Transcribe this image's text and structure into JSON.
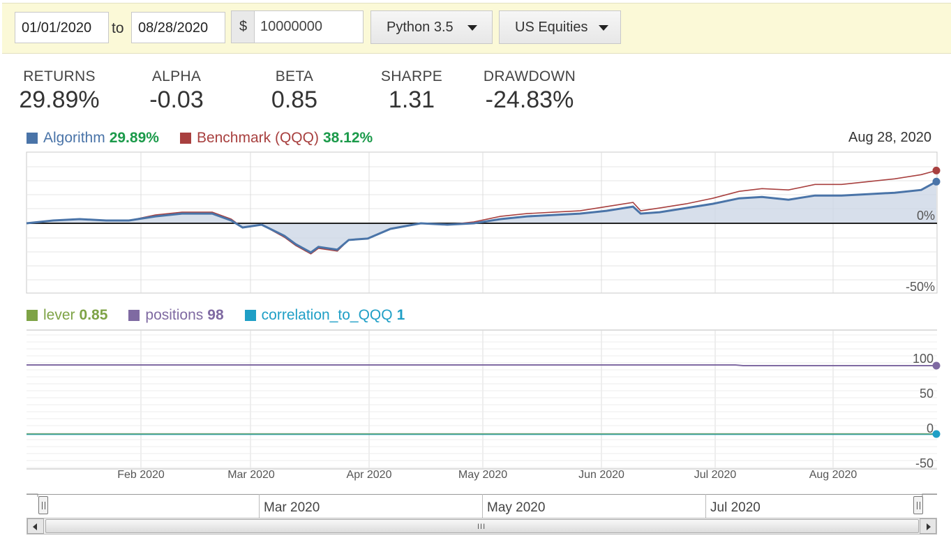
{
  "toolbar": {
    "start_date": "01/01/2020",
    "to_label": "to",
    "end_date": "08/28/2020",
    "currency_symbol": "$",
    "capital": "10000000",
    "python_version": "Python 3.5",
    "dataset": "US Equities"
  },
  "stats": [
    {
      "label": "RETURNS",
      "value": "29.89%"
    },
    {
      "label": "ALPHA",
      "value": "-0.03"
    },
    {
      "label": "BETA",
      "value": "0.85"
    },
    {
      "label": "SHARPE",
      "value": "1.31"
    },
    {
      "label": "DRAWDOWN",
      "value": "-24.83%"
    }
  ],
  "returns_legend": {
    "algorithm_label": "Algorithm",
    "algorithm_value": "29.89%",
    "benchmark_label": "Benchmark (QQQ)",
    "benchmark_value": "38.12%",
    "date": "Aug 28, 2020"
  },
  "custom_legend": {
    "lever_label": "lever",
    "lever_value": "0.85",
    "positions_label": "positions",
    "positions_value": "98",
    "correlation_label": "correlation_to_QQQ",
    "correlation_value": "1"
  },
  "navigator": {
    "labels": [
      "Mar 2020",
      "May 2020",
      "Jul 2020"
    ],
    "grip": "III"
  },
  "colors": {
    "algorithm": "#4a74a8",
    "benchmark": "#a8403f",
    "lever": "#7ea346",
    "positions": "#7f6aa2",
    "correlation": "#1f9fc6",
    "positive": "#1b9a4a",
    "toolbar_bg": "#fbf9d7"
  },
  "chart_data": [
    {
      "type": "line",
      "title": "",
      "x_tick_labels": [
        "Feb 2020",
        "Mar 2020",
        "Apr 2020",
        "May 2020",
        "Jun 2020",
        "Jul 2020",
        "Aug 2020"
      ],
      "y_tick_labels": [
        "0%",
        "-50%"
      ],
      "ylim": [
        -50,
        50
      ],
      "x_dates": [
        "2020-01-01",
        "2020-01-08",
        "2020-01-15",
        "2020-01-22",
        "2020-01-28",
        "2020-02-04",
        "2020-02-11",
        "2020-02-19",
        "2020-02-24",
        "2020-02-27",
        "2020-03-03",
        "2020-03-09",
        "2020-03-12",
        "2020-03-16",
        "2020-03-18",
        "2020-03-23",
        "2020-03-26",
        "2020-03-31",
        "2020-04-06",
        "2020-04-14",
        "2020-04-21",
        "2020-04-28",
        "2020-05-05",
        "2020-05-12",
        "2020-05-19",
        "2020-05-26",
        "2020-06-02",
        "2020-06-09",
        "2020-06-11",
        "2020-06-16",
        "2020-06-23",
        "2020-06-30",
        "2020-07-07",
        "2020-07-13",
        "2020-07-20",
        "2020-07-27",
        "2020-08-03",
        "2020-08-10",
        "2020-08-17",
        "2020-08-24",
        "2020-08-28"
      ],
      "series": [
        {
          "name": "Algorithm",
          "values": [
            0,
            2,
            3,
            2,
            2,
            5,
            7,
            7,
            2,
            -3,
            -1,
            -9,
            -15,
            -21,
            -17,
            -19,
            -12,
            -11,
            -4,
            0,
            -1,
            0,
            3,
            5,
            6,
            7,
            9,
            12,
            7,
            8,
            11,
            14,
            18,
            19,
            17,
            20,
            20,
            21,
            22,
            24,
            30
          ]
        },
        {
          "name": "Benchmark (QQQ)",
          "values": [
            0,
            2,
            3,
            2,
            2,
            6,
            8,
            8,
            3,
            -3,
            -1,
            -10,
            -16,
            -22,
            -18,
            -20,
            -12,
            -11,
            -4,
            0,
            -1,
            1,
            5,
            7,
            8,
            9,
            12,
            15,
            9,
            11,
            14,
            18,
            23,
            25,
            24,
            28,
            28,
            30,
            32,
            35,
            38
          ]
        }
      ]
    },
    {
      "type": "line",
      "title": "",
      "x_tick_labels": [
        "Feb 2020",
        "Mar 2020",
        "Apr 2020",
        "May 2020",
        "Jun 2020",
        "Jul 2020",
        "Aug 2020"
      ],
      "y_tick_labels": [
        "100",
        "50",
        "0",
        "-50"
      ],
      "ylim": [
        -50,
        110
      ],
      "series": [
        {
          "name": "lever",
          "values": [
            0.85,
            0.85
          ]
        },
        {
          "name": "positions",
          "x_dates": [
            "2020-01-01",
            "2020-07-06",
            "2020-07-08",
            "2020-08-28"
          ],
          "values": [
            99,
            99,
            98,
            98
          ]
        },
        {
          "name": "correlation_to_QQQ",
          "values": [
            1,
            1
          ]
        }
      ]
    }
  ]
}
